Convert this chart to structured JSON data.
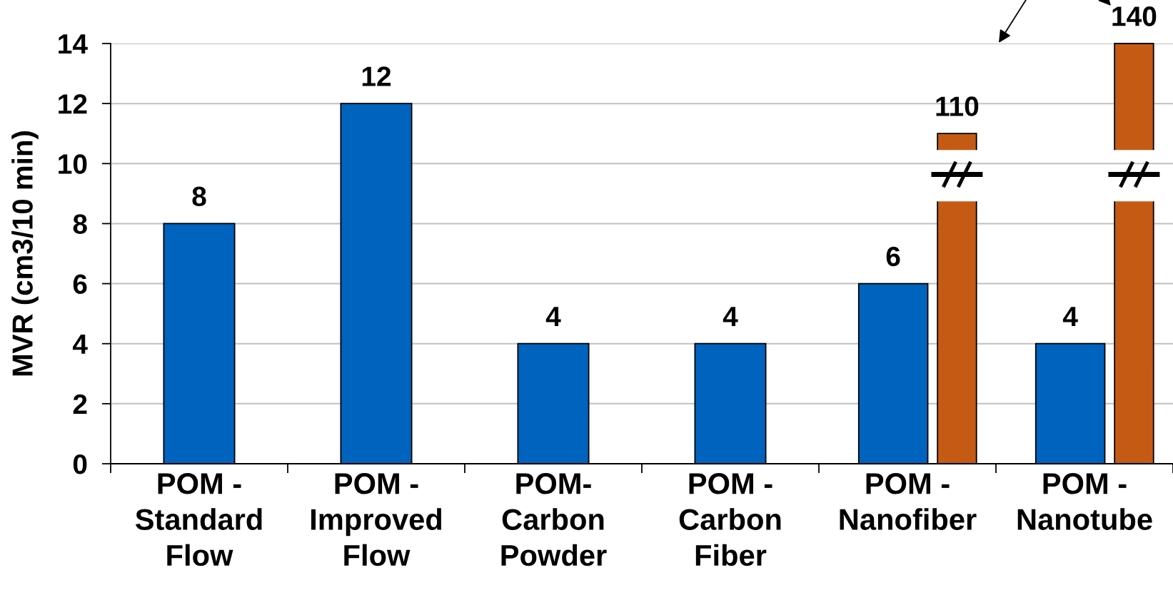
{
  "chart_data": {
    "type": "bar",
    "ylabel": "MVR (cm3/10 min)",
    "categories": [
      "POM -\nStandard\nFlow",
      "POM -\nImproved\nFlow",
      "POM-\nCarbon\nPowder",
      "POM -\nCarbon\nFiber",
      "POM -\nNanofiber",
      "POM -\nNanotube"
    ],
    "series": [
      {
        "color": "#0063be",
        "values": [
          8,
          12,
          4,
          4,
          6,
          4
        ]
      },
      {
        "color": "#c55a15",
        "axis": "y2",
        "values": [
          null,
          null,
          null,
          null,
          110,
          140
        ]
      }
    ],
    "ylim": [
      0,
      14
    ],
    "yticks": [
      0,
      2,
      4,
      6,
      8,
      10,
      12,
      14
    ],
    "y2lim": [
      0,
      140
    ],
    "grid": "y",
    "data_labels": true
  }
}
